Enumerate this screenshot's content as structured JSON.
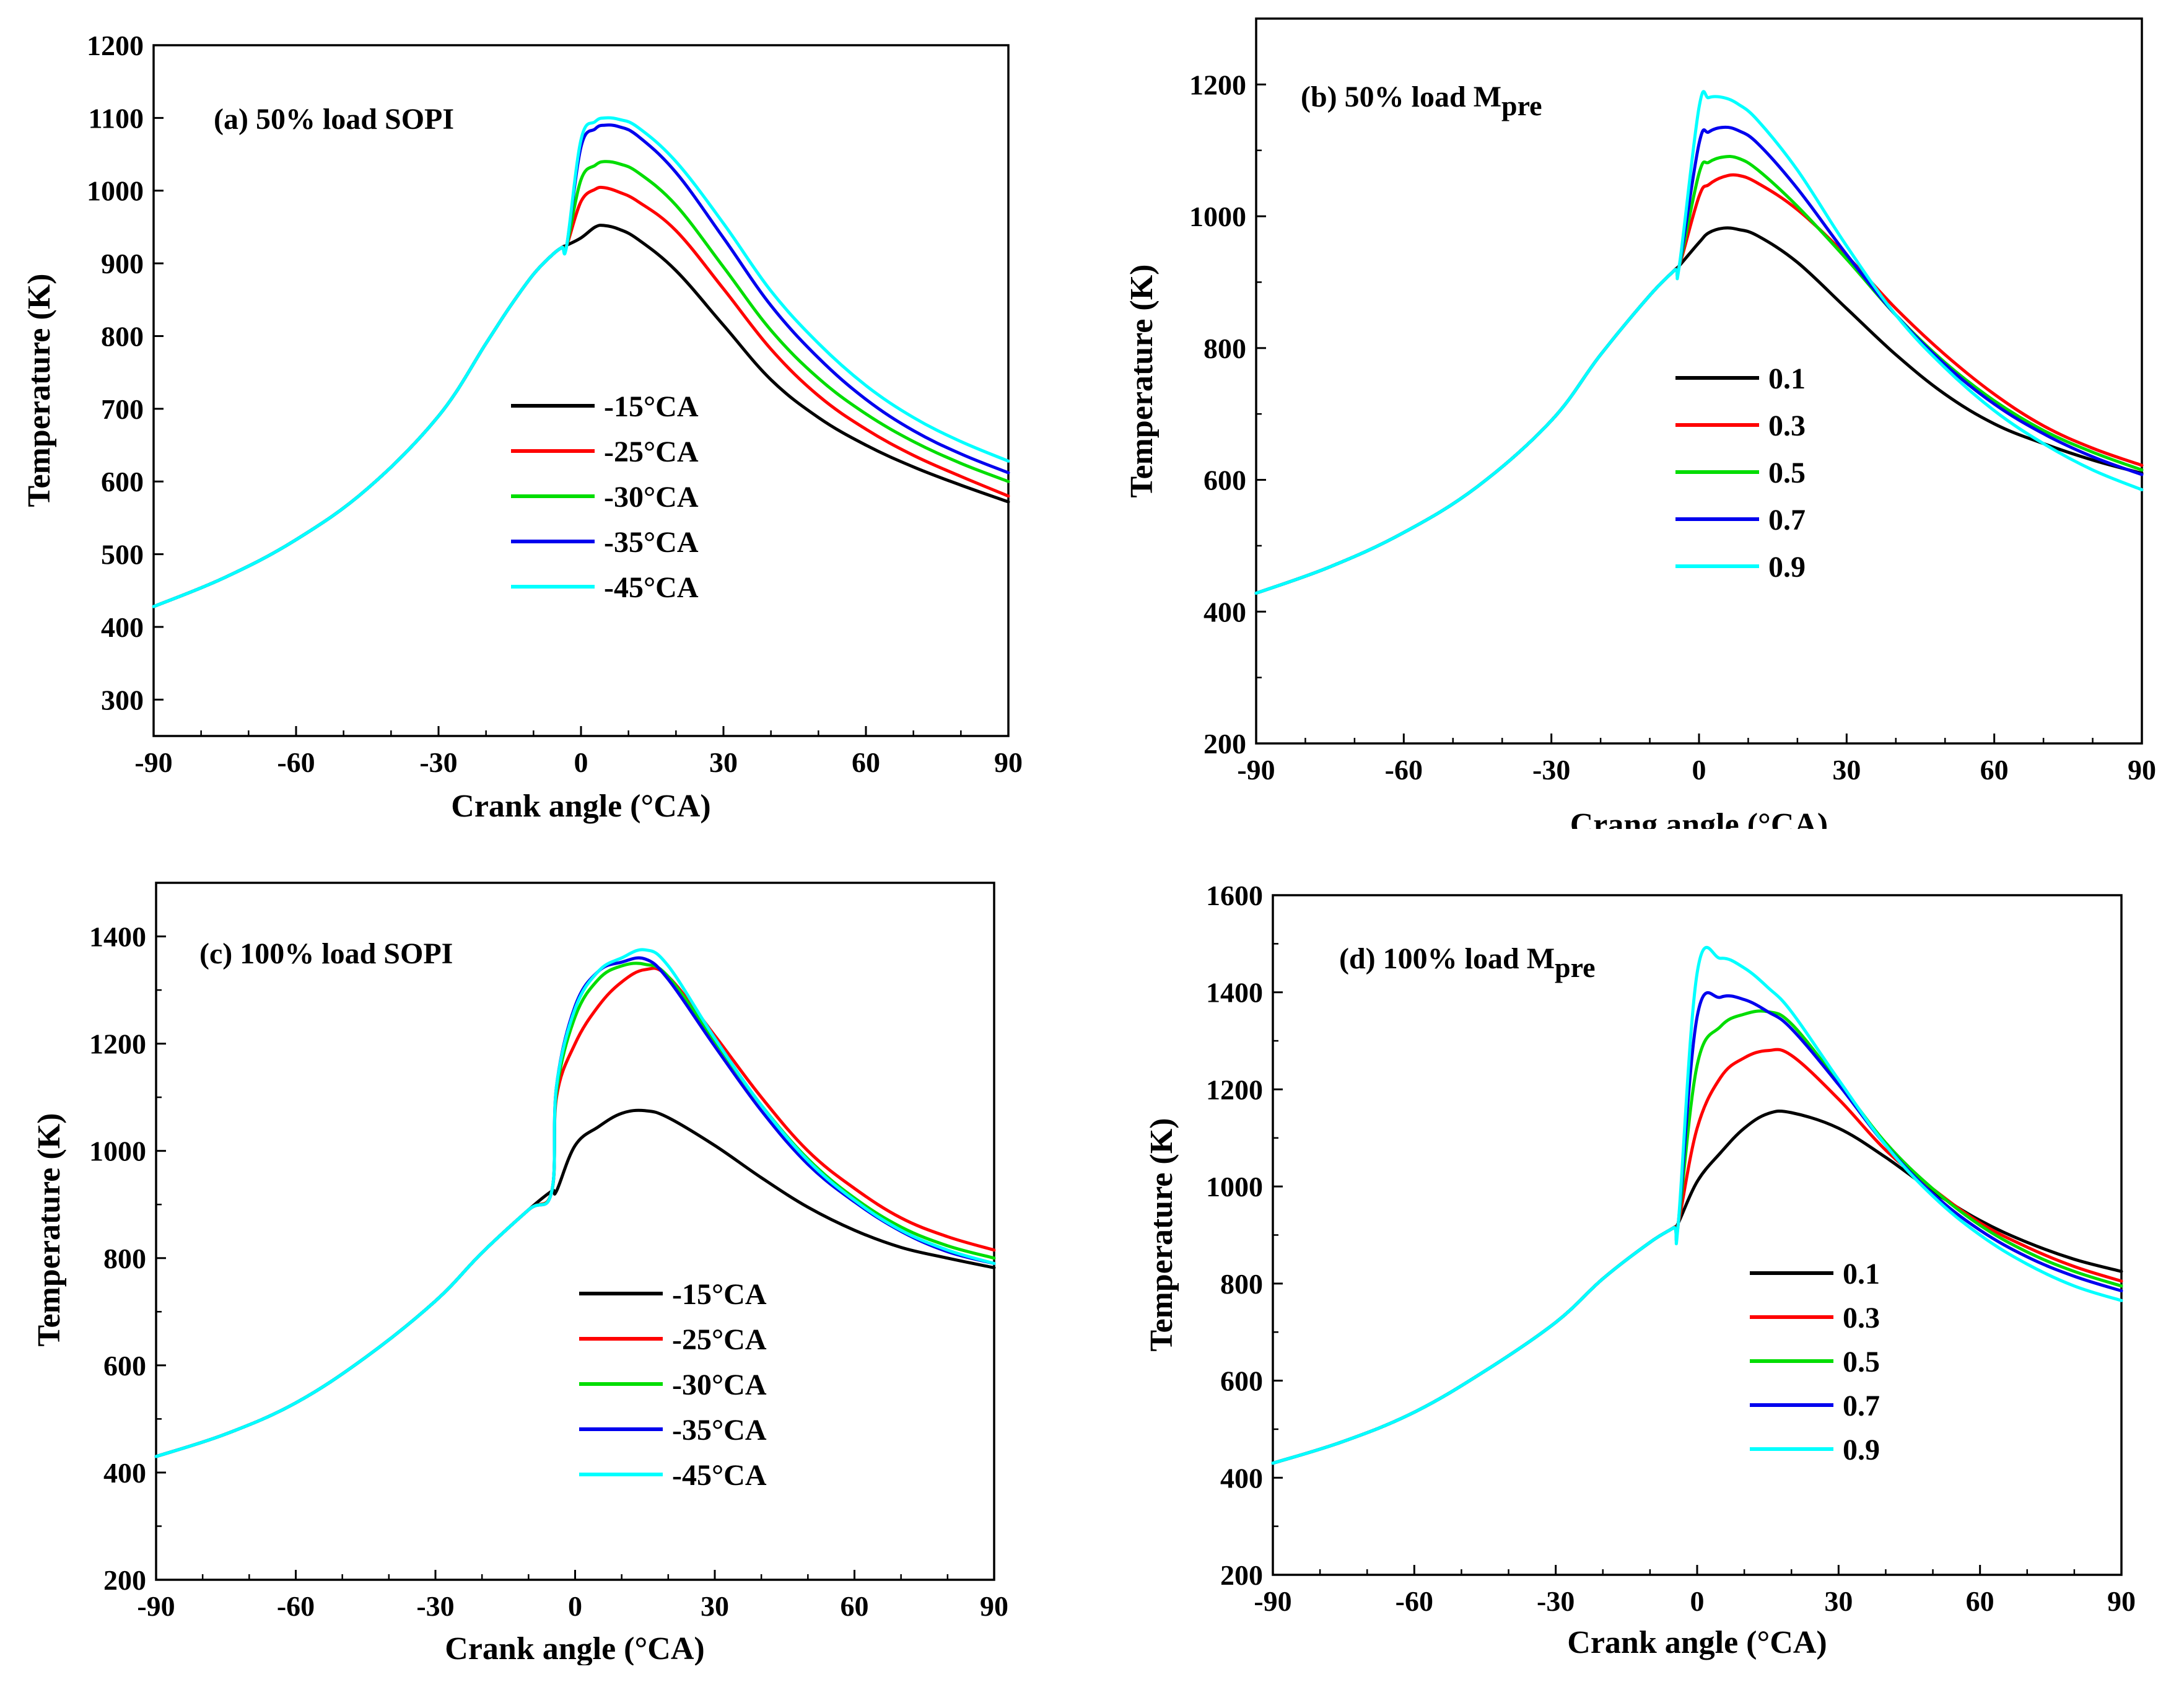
{
  "figure": {
    "panels": [
      {
        "id": "a",
        "panel_label": "(a) 50% load SOPI",
        "panel_label_main": "(a) 50% load SOPI",
        "panel_label_sub": "",
        "xlabel": "Crank angle (°CA)",
        "ylabel": "Temperature (K)",
        "xticks": [
          "-90",
          "-60",
          "-30",
          "0",
          "30",
          "60",
          "90"
        ],
        "yticks": [
          "300",
          "400",
          "500",
          "600",
          "700",
          "800",
          "900",
          "1000",
          "1100",
          "1200"
        ],
        "legend_title": "",
        "legend": [
          "-15°CA",
          "-25°CA",
          "-30°CA",
          "-35°CA",
          "-45°CA"
        ]
      },
      {
        "id": "b",
        "panel_label": "(b) 50% load Mpre",
        "panel_label_main": "(b) 50% load M",
        "panel_label_sub": "pre",
        "xlabel": "Crang angle (°CA)",
        "ylabel": "Temperature (K)",
        "xticks": [
          "-90",
          "-60",
          "-30",
          "0",
          "30",
          "60",
          "90"
        ],
        "yticks": [
          "200",
          "400",
          "600",
          "800",
          "1000",
          "1200"
        ],
        "legend": [
          "0.1",
          "0.3",
          "0.5",
          "0.7",
          "0.9"
        ]
      },
      {
        "id": "c",
        "panel_label": "(c) 100% load SOPI",
        "panel_label_main": "(c) 100% load SOPI",
        "panel_label_sub": "",
        "xlabel": "Crank angle (°CA)",
        "ylabel": "Temperature (K)",
        "xticks": [
          "-90",
          "-60",
          "-30",
          "0",
          "30",
          "60",
          "90"
        ],
        "yticks": [
          "200",
          "400",
          "600",
          "800",
          "1000",
          "1200",
          "1400"
        ],
        "legend": [
          "-15°CA",
          "-25°CA",
          "-30°CA",
          "-35°CA",
          "-45°CA"
        ]
      },
      {
        "id": "d",
        "panel_label": "(d) 100% load Mpre",
        "panel_label_main": "(d) 100% load M",
        "panel_label_sub": "pre",
        "xlabel": "Crank angle (°CA)",
        "ylabel": "Temperature (K)",
        "xticks": [
          "-90",
          "-60",
          "-30",
          "0",
          "30",
          "60",
          "90"
        ],
        "yticks": [
          "200",
          "400",
          "600",
          "800",
          "1000",
          "1200",
          "1400",
          "1600"
        ],
        "legend": [
          "0.1",
          "0.3",
          "0.5",
          "0.7",
          "0.9"
        ]
      }
    ]
  },
  "series_colors": [
    "#000000",
    "#ff0000",
    "#00dd00",
    "#0000ee",
    "#00ffff"
  ],
  "chart_data": [
    {
      "type": "line",
      "title": "(a) 50% load SOPI",
      "xlabel": "Crank angle (°CA)",
      "ylabel": "Temperature (K)",
      "xlim": [
        -90,
        90
      ],
      "ylim": [
        250,
        1200
      ],
      "legend_position": "center-right",
      "x": [
        -90,
        -75,
        -60,
        -45,
        -30,
        -20,
        -15,
        -10,
        -6,
        -4,
        -3,
        0,
        3,
        5,
        8,
        12,
        20,
        30,
        40,
        50,
        60,
        70,
        80,
        90
      ],
      "series": [
        {
          "name": "-15°CA",
          "values": [
            428,
            468,
            520,
            590,
            690,
            790,
            840,
            885,
            912,
            922,
            925,
            935,
            950,
            952,
            947,
            933,
            890,
            815,
            740,
            688,
            650,
            620,
            595,
            572
          ]
        },
        {
          "name": "-25°CA",
          "values": [
            428,
            468,
            520,
            590,
            690,
            790,
            840,
            885,
            912,
            922,
            925,
            985,
            1002,
            1004,
            998,
            985,
            945,
            865,
            782,
            718,
            672,
            636,
            607,
            580
          ]
        },
        {
          "name": "-30°CA",
          "values": [
            428,
            468,
            520,
            590,
            690,
            790,
            840,
            885,
            912,
            922,
            925,
            1015,
            1035,
            1040,
            1037,
            1025,
            980,
            895,
            808,
            742,
            693,
            655,
            625,
            600
          ]
        },
        {
          "name": "-35°CA",
          "values": [
            428,
            468,
            520,
            590,
            690,
            790,
            840,
            885,
            912,
            922,
            925,
            1060,
            1085,
            1090,
            1088,
            1075,
            1025,
            935,
            842,
            770,
            713,
            670,
            638,
            612
          ]
        },
        {
          "name": "-45°CA",
          "values": [
            428,
            468,
            520,
            590,
            690,
            790,
            840,
            885,
            912,
            922,
            925,
            1070,
            1095,
            1100,
            1098,
            1087,
            1040,
            955,
            862,
            790,
            732,
            688,
            655,
            628
          ]
        }
      ]
    },
    {
      "type": "line",
      "title": "(b) 50% load Mpre",
      "xlabel": "Crang angle (°CA)",
      "ylabel": "Temperature (K)",
      "xlim": [
        -90,
        90
      ],
      "ylim": [
        200,
        1300
      ],
      "legend_position": "center",
      "x": [
        -90,
        -75,
        -60,
        -45,
        -30,
        -20,
        -10,
        -5,
        -4,
        0,
        2,
        5,
        8,
        12,
        20,
        30,
        40,
        50,
        60,
        70,
        80,
        90
      ],
      "series": [
        {
          "name": "0.1",
          "values": [
            428,
            468,
            520,
            590,
            690,
            790,
            880,
            918,
            925,
            960,
            975,
            982,
            980,
            970,
            930,
            860,
            790,
            730,
            685,
            655,
            630,
            610
          ]
        },
        {
          "name": "0.3",
          "values": [
            428,
            468,
            520,
            590,
            690,
            790,
            880,
            918,
            925,
            1030,
            1048,
            1060,
            1062,
            1050,
            1010,
            940,
            860,
            790,
            730,
            682,
            648,
            622
          ]
        },
        {
          "name": "0.5",
          "values": [
            428,
            468,
            520,
            590,
            690,
            790,
            880,
            918,
            925,
            1065,
            1082,
            1090,
            1088,
            1070,
            1015,
            935,
            850,
            778,
            720,
            675,
            642,
            615
          ]
        },
        {
          "name": "0.7",
          "values": [
            428,
            468,
            520,
            590,
            690,
            790,
            880,
            918,
            925,
            1110,
            1128,
            1135,
            1130,
            1110,
            1042,
            942,
            850,
            775,
            715,
            670,
            635,
            608
          ]
        },
        {
          "name": "0.9",
          "values": [
            428,
            468,
            520,
            590,
            690,
            790,
            880,
            918,
            925,
            1165,
            1180,
            1180,
            1170,
            1145,
            1070,
            955,
            850,
            770,
            705,
            655,
            615,
            585
          ]
        }
      ]
    },
    {
      "type": "line",
      "title": "(c) 100% load SOPI",
      "xlabel": "Crank angle (°CA)",
      "ylabel": "Temperature (K)",
      "xlim": [
        -90,
        90
      ],
      "ylim": [
        200,
        1500
      ],
      "legend_position": "center-right",
      "x": [
        -90,
        -75,
        -60,
        -45,
        -30,
        -20,
        -10,
        -5,
        -4,
        0,
        5,
        10,
        15,
        20,
        30,
        40,
        50,
        60,
        70,
        80,
        90
      ],
      "series": [
        {
          "name": "-15°CA",
          "values": [
            430,
            472,
            530,
            615,
            720,
            810,
            890,
            925,
            925,
            1010,
            1045,
            1070,
            1075,
            1062,
            1010,
            950,
            895,
            852,
            820,
            800,
            782
          ]
        },
        {
          "name": "-25°CA",
          "values": [
            430,
            472,
            530,
            615,
            720,
            810,
            890,
            925,
            1100,
            1200,
            1270,
            1315,
            1338,
            1325,
            1215,
            1100,
            1000,
            930,
            875,
            840,
            815
          ]
        },
        {
          "name": "-30°CA",
          "values": [
            430,
            472,
            530,
            615,
            720,
            810,
            890,
            925,
            1110,
            1250,
            1320,
            1345,
            1348,
            1325,
            1205,
            1085,
            985,
            912,
            858,
            823,
            800
          ]
        },
        {
          "name": "-35°CA",
          "values": [
            430,
            472,
            530,
            615,
            720,
            810,
            890,
            925,
            1120,
            1270,
            1335,
            1352,
            1358,
            1320,
            1195,
            1075,
            975,
            905,
            850,
            812,
            790
          ]
        },
        {
          "name": "-45°CA",
          "values": [
            430,
            472,
            530,
            615,
            720,
            810,
            890,
            925,
            1120,
            1265,
            1335,
            1360,
            1375,
            1345,
            1210,
            1085,
            982,
            908,
            852,
            815,
            790
          ]
        }
      ]
    },
    {
      "type": "line",
      "title": "(d) 100% load Mpre",
      "xlabel": "Crank angle (°CA)",
      "ylabel": "Temperature (K)",
      "xlim": [
        -90,
        90
      ],
      "ylim": [
        200,
        1600
      ],
      "legend_position": "center-right",
      "x": [
        -90,
        -75,
        -60,
        -45,
        -30,
        -20,
        -10,
        -5,
        -4,
        0,
        5,
        10,
        15,
        20,
        30,
        40,
        50,
        60,
        70,
        80,
        90
      ],
      "series": [
        {
          "name": "0.1",
          "values": [
            430,
            475,
            535,
            620,
            720,
            810,
            885,
            915,
            925,
            1010,
            1070,
            1120,
            1150,
            1152,
            1120,
            1060,
            990,
            930,
            885,
            850,
            825
          ]
        },
        {
          "name": "0.3",
          "values": [
            430,
            475,
            535,
            620,
            720,
            810,
            885,
            915,
            925,
            1120,
            1225,
            1265,
            1280,
            1270,
            1180,
            1075,
            995,
            925,
            875,
            835,
            805
          ]
        },
        {
          "name": "0.5",
          "values": [
            430,
            475,
            535,
            620,
            720,
            810,
            885,
            915,
            925,
            1250,
            1330,
            1355,
            1360,
            1335,
            1215,
            1090,
            995,
            920,
            865,
            825,
            795
          ]
        },
        {
          "name": "0.7",
          "values": [
            430,
            475,
            535,
            620,
            720,
            810,
            885,
            915,
            925,
            1350,
            1390,
            1385,
            1360,
            1325,
            1210,
            1085,
            985,
            910,
            855,
            815,
            785
          ]
        },
        {
          "name": "0.9",
          "values": [
            430,
            475,
            535,
            620,
            720,
            810,
            885,
            915,
            925,
            1440,
            1470,
            1450,
            1410,
            1360,
            1220,
            1085,
            980,
            900,
            840,
            795,
            765
          ]
        }
      ]
    }
  ]
}
